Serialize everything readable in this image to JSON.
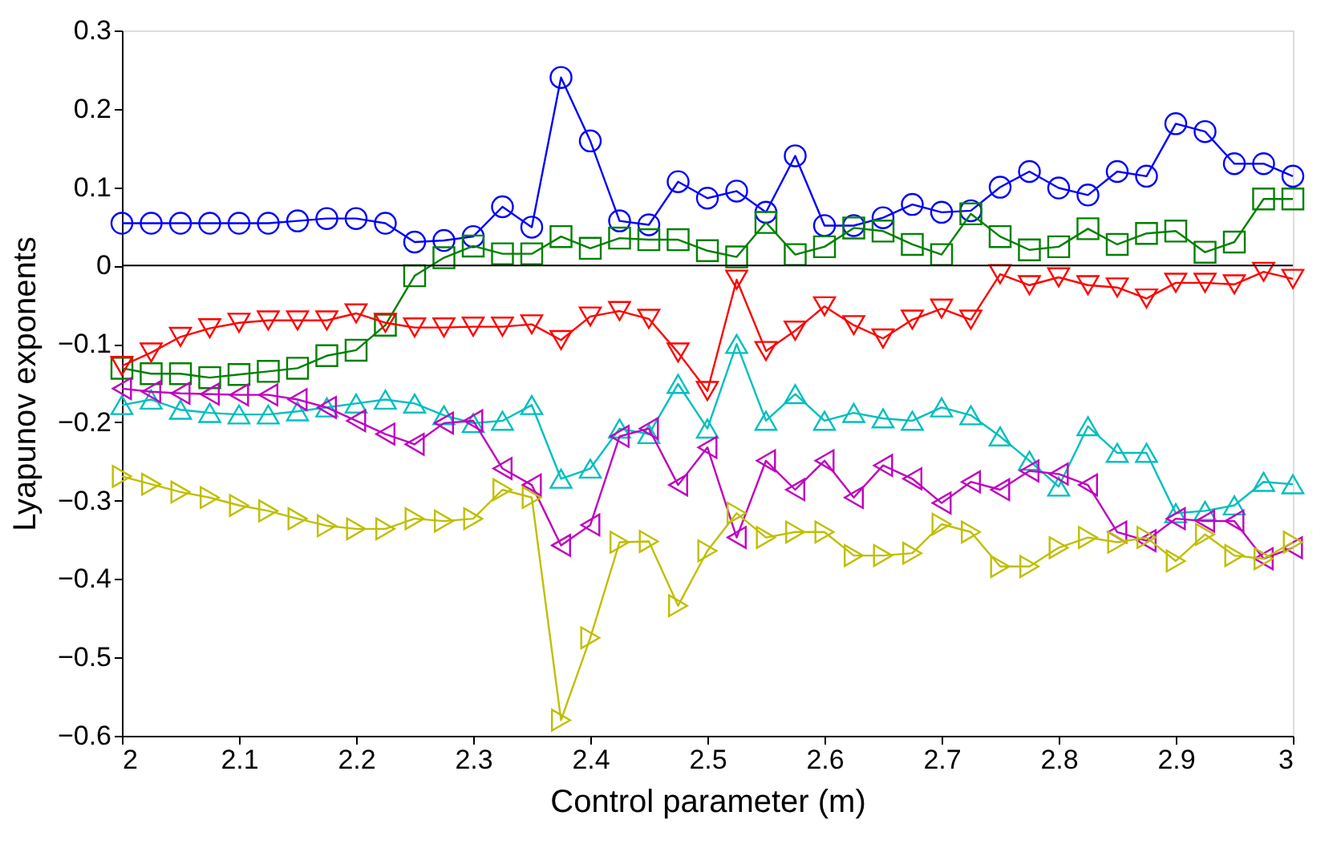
{
  "chart_data": {
    "type": "line",
    "xlabel": "Control parameter (m)",
    "ylabel": "Lyapunov exponents",
    "x": [
      2.0,
      2.025,
      2.05,
      2.075,
      2.1,
      2.125,
      2.15,
      2.175,
      2.2,
      2.225,
      2.25,
      2.275,
      2.3,
      2.325,
      2.35,
      2.375,
      2.4,
      2.425,
      2.45,
      2.475,
      2.5,
      2.525,
      2.55,
      2.575,
      2.6,
      2.625,
      2.65,
      2.675,
      2.7,
      2.725,
      2.75,
      2.775,
      2.8,
      2.825,
      2.85,
      2.875,
      2.9,
      2.925,
      2.95,
      2.975,
      3.0
    ],
    "series": [
      {
        "color": "#0000ff",
        "marker": "circle",
        "values": [
          0.054,
          0.054,
          0.054,
          0.054,
          0.054,
          0.054,
          0.057,
          0.06,
          0.06,
          0.054,
          0.03,
          0.032,
          0.037,
          0.075,
          0.049,
          0.24,
          0.159,
          0.057,
          0.052,
          0.107,
          0.086,
          0.095,
          0.068,
          0.14,
          0.051,
          0.051,
          0.061,
          0.078,
          0.068,
          0.07,
          0.1,
          0.12,
          0.099,
          0.09,
          0.12,
          0.114,
          0.181,
          0.171,
          0.13,
          0.13,
          0.114
        ]
      },
      {
        "color": "#008000",
        "marker": "square",
        "values": [
          -0.131,
          -0.138,
          -0.138,
          -0.143,
          -0.139,
          -0.135,
          -0.131,
          -0.115,
          -0.108,
          -0.076,
          -0.013,
          0.01,
          0.025,
          0.015,
          0.015,
          0.037,
          0.022,
          0.035,
          0.033,
          0.033,
          0.019,
          0.011,
          0.055,
          0.014,
          0.024,
          0.048,
          0.044,
          0.027,
          0.014,
          0.066,
          0.037,
          0.02,
          0.024,
          0.047,
          0.027,
          0.041,
          0.044,
          0.017,
          0.03,
          0.085,
          0.085
        ]
      },
      {
        "color": "#ff0000",
        "marker": "triangle-down",
        "values": [
          -0.128,
          -0.111,
          -0.091,
          -0.08,
          -0.073,
          -0.07,
          -0.07,
          -0.07,
          -0.061,
          -0.073,
          -0.079,
          -0.079,
          -0.078,
          -0.078,
          -0.075,
          -0.095,
          -0.065,
          -0.058,
          -0.068,
          -0.111,
          -0.16,
          -0.018,
          -0.109,
          -0.083,
          -0.052,
          -0.076,
          -0.093,
          -0.069,
          -0.055,
          -0.069,
          -0.011,
          -0.025,
          -0.015,
          -0.025,
          -0.028,
          -0.042,
          -0.022,
          -0.022,
          -0.024,
          -0.008,
          -0.017
        ]
      },
      {
        "color": "#00bfbf",
        "marker": "triangle-up",
        "values": [
          -0.178,
          -0.171,
          -0.184,
          -0.188,
          -0.19,
          -0.19,
          -0.186,
          -0.181,
          -0.176,
          -0.171,
          -0.176,
          -0.191,
          -0.201,
          -0.198,
          -0.178,
          -0.272,
          -0.259,
          -0.208,
          -0.215,
          -0.151,
          -0.208,
          -0.1,
          -0.198,
          -0.164,
          -0.198,
          -0.188,
          -0.195,
          -0.198,
          -0.181,
          -0.191,
          -0.218,
          -0.249,
          -0.282,
          -0.205,
          -0.239,
          -0.239,
          -0.316,
          -0.313,
          -0.306,
          -0.276,
          -0.279
        ]
      },
      {
        "color": "#bf00bf",
        "marker": "triangle-left",
        "values": [
          -0.157,
          -0.161,
          -0.163,
          -0.164,
          -0.165,
          -0.165,
          -0.171,
          -0.181,
          -0.198,
          -0.215,
          -0.228,
          -0.201,
          -0.198,
          -0.259,
          -0.28,
          -0.357,
          -0.331,
          -0.218,
          -0.208,
          -0.28,
          -0.232,
          -0.347,
          -0.249,
          -0.286,
          -0.249,
          -0.296,
          -0.255,
          -0.272,
          -0.303,
          -0.276,
          -0.286,
          -0.262,
          -0.266,
          -0.28,
          -0.34,
          -0.351,
          -0.323,
          -0.326,
          -0.326,
          -0.374,
          -0.36
        ]
      },
      {
        "color": "#bfbf00",
        "marker": "triangle-right",
        "values": [
          -0.269,
          -0.279,
          -0.289,
          -0.296,
          -0.306,
          -0.313,
          -0.323,
          -0.332,
          -0.336,
          -0.336,
          -0.323,
          -0.326,
          -0.323,
          -0.286,
          -0.296,
          -0.58,
          -0.475,
          -0.353,
          -0.352,
          -0.434,
          -0.364,
          -0.316,
          -0.347,
          -0.34,
          -0.34,
          -0.37,
          -0.37,
          -0.367,
          -0.33,
          -0.34,
          -0.384,
          -0.384,
          -0.36,
          -0.347,
          -0.353,
          -0.347,
          -0.377,
          -0.343,
          -0.37,
          -0.374,
          -0.353
        ]
      }
    ],
    "xlim": [
      2,
      3
    ],
    "xticks": [
      2,
      2.1,
      2.2,
      2.3,
      2.4,
      2.5,
      2.6,
      2.7,
      2.8,
      2.9,
      3
    ],
    "ylim": [
      -0.6,
      0.3
    ],
    "yticks": [
      -0.6,
      -0.5,
      -0.4,
      -0.3,
      -0.2,
      -0.1,
      0,
      0.1,
      0.2,
      0.3
    ],
    "ref_lines": [
      {
        "axis": "y",
        "value": 0,
        "color": "#000000"
      }
    ],
    "grid": false,
    "line_style": "solid"
  }
}
